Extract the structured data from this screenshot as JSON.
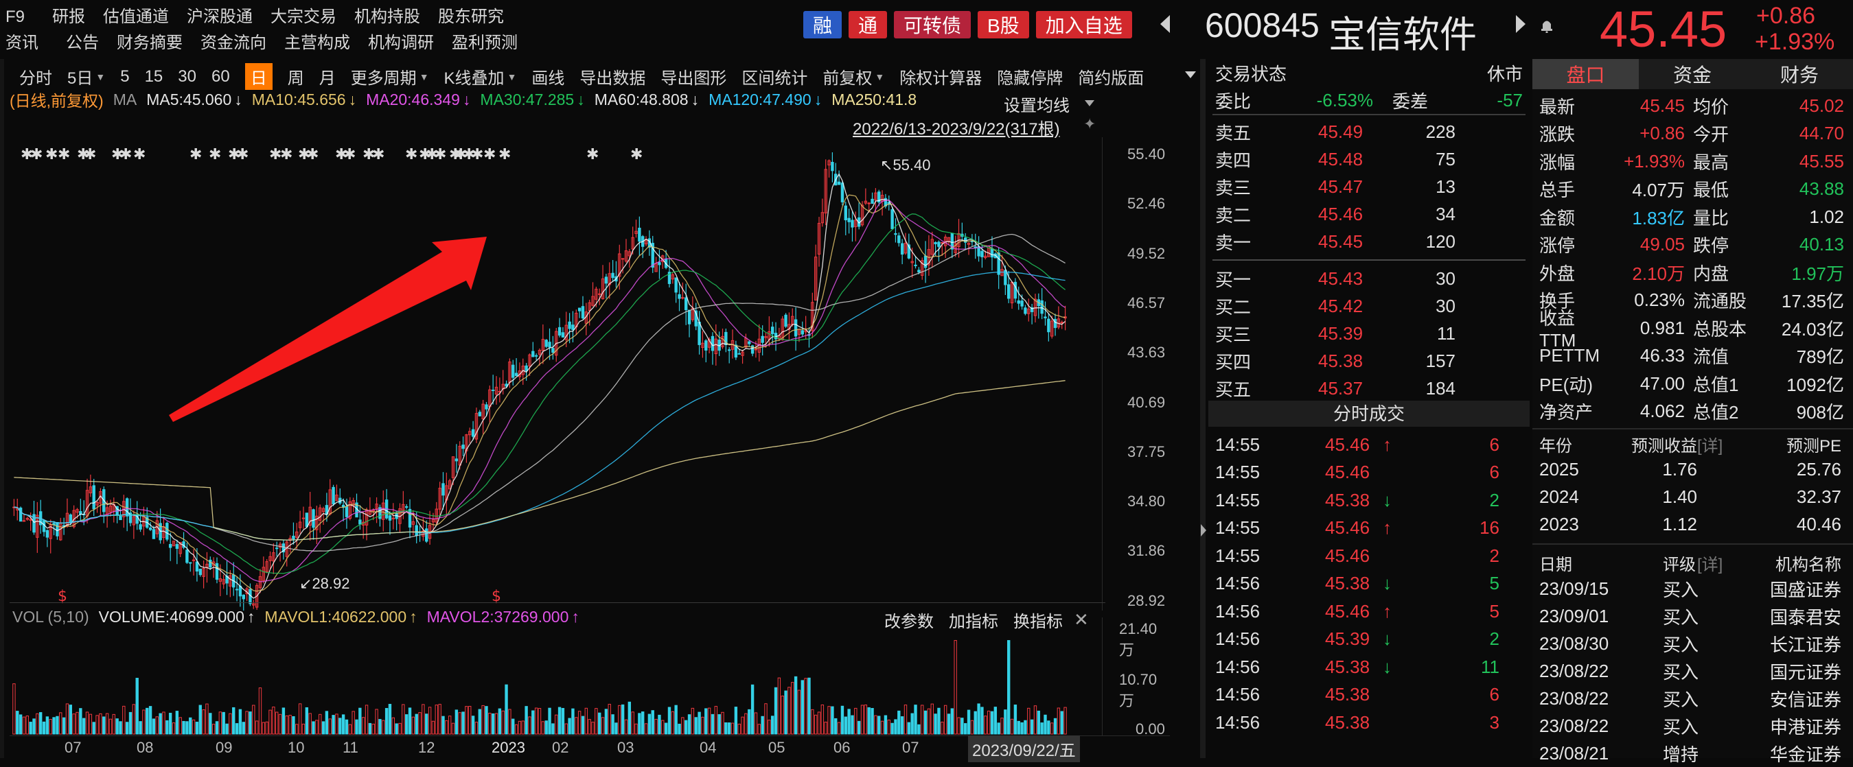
{
  "top_menu": {
    "row1": [
      "F9",
      "研报",
      "估值通道",
      "沪深股通",
      "大宗交易",
      "机构持股",
      "股东研究"
    ],
    "row2": [
      "资讯",
      "公告",
      "财务摘要",
      "资金流向",
      "主营构成",
      "机构调研",
      "盈利预测"
    ]
  },
  "badges": {
    "rong": "融",
    "tong": "通",
    "convertible": "可转债",
    "b_share": "B股",
    "add_watch": "加入自选"
  },
  "colors": {
    "red": "#f0393f",
    "green": "#21c25a",
    "cyan": "#34c9ff",
    "orange_accent": "#ff7900",
    "yellow": "#e2c36b",
    "magenta": "#e155e8"
  },
  "stock": {
    "code": "600845",
    "name": "宝信软件",
    "price": "45.45",
    "change": "+0.86",
    "change_pct": "+1.93%",
    "icons": [
      "chevron-left-icon",
      "chevron-right-icon",
      "bell-icon"
    ]
  },
  "period_toolbar": {
    "items": [
      "分时",
      "5日",
      "5",
      "15",
      "30",
      "60",
      "日",
      "周",
      "月",
      "更多周期",
      "K线叠加",
      "画线",
      "导出数据",
      "导出图形",
      "区间统计",
      "前复权",
      "除权计算器",
      "隐藏停牌",
      "简约版面"
    ],
    "active": "日"
  },
  "ma_line": {
    "mode": "(日线,前复权)",
    "ma": "MA",
    "ma5": "MA5:45.060",
    "ma10": "MA10:45.656",
    "ma20": "MA20:46.349",
    "ma30": "MA30:47.285",
    "ma60": "MA60:48.808",
    "ma120": "MA120:47.490",
    "ma250": "MA250:41.8",
    "settings": "设置均线",
    "date_range": "2022/6/13-2023/9/22(317根)"
  },
  "price_axis": [
    "55.40",
    "52.46",
    "49.52",
    "46.57",
    "43.63",
    "40.69",
    "37.75",
    "34.80",
    "31.86",
    "28.92"
  ],
  "annotations": {
    "high": "55.40",
    "low": "28.92"
  },
  "volume_panel": {
    "title": "VOL (5,10)",
    "volume": "VOLUME:40699.000",
    "mavol1": "MAVOL1:40622.000",
    "mavol2": "MAVOL2:37269.000",
    "actions": [
      "改参数",
      "加指标",
      "换指标"
    ],
    "axis": [
      "21.40万",
      "10.70万",
      "0.00"
    ]
  },
  "x_axis": [
    "07",
    "08",
    "09",
    "10",
    "11",
    "12",
    "2023",
    "02",
    "03",
    "04",
    "05",
    "06",
    "07"
  ],
  "x_cursor_label": "2023/09/22/五",
  "chart_data": {
    "type": "candlestick",
    "title": "600845 宝信软件 日线 前复权",
    "x_range": "2022/6/13-2023/9/22",
    "bars": 317,
    "ylim": [
      28.92,
      55.4
    ],
    "high": 55.4,
    "low": 28.92,
    "last_close": 45.45,
    "moving_averages": [
      {
        "name": "MA5",
        "value": 45.06
      },
      {
        "name": "MA10",
        "value": 45.656
      },
      {
        "name": "MA20",
        "value": 46.349
      },
      {
        "name": "MA30",
        "value": 47.285
      },
      {
        "name": "MA60",
        "value": 48.808
      },
      {
        "name": "MA120",
        "value": 47.49
      },
      {
        "name": "MA250",
        "value": 41.8
      }
    ],
    "volume": {
      "last": 40699.0,
      "mavol1": 40622.0,
      "mavol2": 37269.0,
      "ylim": [
        0,
        214000
      ]
    }
  },
  "orderbook": {
    "title": "交易状态",
    "status": "休市",
    "ratio_label": "委比",
    "ratio": "-6.53%",
    "diff_label": "委差",
    "diff": "-57",
    "sells": [
      {
        "label": "卖五",
        "price": "45.49",
        "vol": "228"
      },
      {
        "label": "卖四",
        "price": "45.48",
        "vol": "75"
      },
      {
        "label": "卖三",
        "price": "45.47",
        "vol": "13"
      },
      {
        "label": "卖二",
        "price": "45.46",
        "vol": "34"
      },
      {
        "label": "卖一",
        "price": "45.45",
        "vol": "120"
      }
    ],
    "buys": [
      {
        "label": "买一",
        "price": "45.43",
        "vol": "30"
      },
      {
        "label": "买二",
        "price": "45.42",
        "vol": "30"
      },
      {
        "label": "买三",
        "price": "45.39",
        "vol": "11"
      },
      {
        "label": "买四",
        "price": "45.38",
        "vol": "157"
      },
      {
        "label": "买五",
        "price": "45.37",
        "vol": "184"
      }
    ]
  },
  "ticks": {
    "title": "分时成交",
    "rows": [
      {
        "time": "14:55",
        "price": "45.46",
        "dir": "up",
        "vol": "6"
      },
      {
        "time": "14:55",
        "price": "45.46",
        "dir": "",
        "vol": "6"
      },
      {
        "time": "14:55",
        "price": "45.38",
        "dir": "down",
        "vol": "2"
      },
      {
        "time": "14:55",
        "price": "45.46",
        "dir": "up",
        "vol": "16"
      },
      {
        "time": "14:55",
        "price": "45.46",
        "dir": "",
        "vol": "2"
      },
      {
        "time": "14:56",
        "price": "45.38",
        "dir": "down",
        "vol": "5"
      },
      {
        "time": "14:56",
        "price": "45.46",
        "dir": "up",
        "vol": "5"
      },
      {
        "time": "14:56",
        "price": "45.39",
        "dir": "down",
        "vol": "2"
      },
      {
        "time": "14:56",
        "price": "45.38",
        "dir": "down",
        "vol": "11"
      },
      {
        "time": "14:56",
        "price": "45.38",
        "dir": "",
        "vol": "6"
      },
      {
        "time": "14:56",
        "price": "45.38",
        "dir": "",
        "vol": "3"
      }
    ]
  },
  "right_tabs": [
    "盘口",
    "资金",
    "财务"
  ],
  "quote_stats": [
    {
      "l1": "最新",
      "v1": "45.45",
      "c1": "red",
      "l2": "均价",
      "v2": "45.02",
      "c2": "red"
    },
    {
      "l1": "涨跌",
      "v1": "+0.86",
      "c1": "red",
      "l2": "今开",
      "v2": "44.70",
      "c2": "red"
    },
    {
      "l1": "涨幅",
      "v1": "+1.93%",
      "c1": "red",
      "l2": "最高",
      "v2": "45.55",
      "c2": "red"
    },
    {
      "l1": "总手",
      "v1": "4.07万",
      "c1": "white",
      "l2": "最低",
      "v2": "43.88",
      "c2": "green"
    },
    {
      "l1": "金额",
      "v1": "1.83亿",
      "c1": "cyan",
      "l2": "量比",
      "v2": "1.02",
      "c2": "white"
    },
    {
      "l1": "涨停",
      "v1": "49.05",
      "c1": "red",
      "l2": "跌停",
      "v2": "40.13",
      "c2": "green"
    },
    {
      "l1": "外盘",
      "v1": "2.10万",
      "c1": "red",
      "l2": "内盘",
      "v2": "1.97万",
      "c2": "green"
    },
    {
      "l1": "换手",
      "v1": "0.23%",
      "c1": "white",
      "l2": "流通股",
      "v2": "17.35亿",
      "c2": "white"
    },
    {
      "l1": "收益TTM",
      "v1": "0.981",
      "c1": "white",
      "l2": "总股本",
      "v2": "24.03亿",
      "c2": "white"
    },
    {
      "l1": "PETTM",
      "v1": "46.33",
      "c1": "white",
      "l2": "流值",
      "v2": "789亿",
      "c2": "white"
    },
    {
      "l1": "PE(动)",
      "v1": "47.00",
      "c1": "white",
      "l2": "总值1",
      "v2": "1092亿",
      "c2": "white"
    },
    {
      "l1": "净资产",
      "v1": "4.062",
      "c1": "white",
      "l2": "总值2",
      "v2": "908亿",
      "c2": "white"
    }
  ],
  "forecast": {
    "header": [
      "年份",
      "预测收益",
      "[详]",
      "预测PE"
    ],
    "rows": [
      {
        "year": "2025",
        "eps": "1.76",
        "pe": "25.76"
      },
      {
        "year": "2024",
        "eps": "1.40",
        "pe": "32.37"
      },
      {
        "year": "2023",
        "eps": "1.12",
        "pe": "40.46"
      }
    ]
  },
  "ratings": {
    "header": [
      "日期",
      "评级",
      "[详]",
      "机构名称"
    ],
    "rows": [
      {
        "date": "23/09/15",
        "rating": "买入",
        "org": "国盛证券"
      },
      {
        "date": "23/09/01",
        "rating": "买入",
        "org": "国泰君安"
      },
      {
        "date": "23/08/30",
        "rating": "买入",
        "org": "长江证券"
      },
      {
        "date": "23/08/22",
        "rating": "买入",
        "org": "国元证券"
      },
      {
        "date": "23/08/22",
        "rating": "买入",
        "org": "安信证券"
      },
      {
        "date": "23/08/22",
        "rating": "买入",
        "org": "申港证券"
      },
      {
        "date": "23/08/21",
        "rating": "增持",
        "org": "华金证券"
      }
    ]
  }
}
